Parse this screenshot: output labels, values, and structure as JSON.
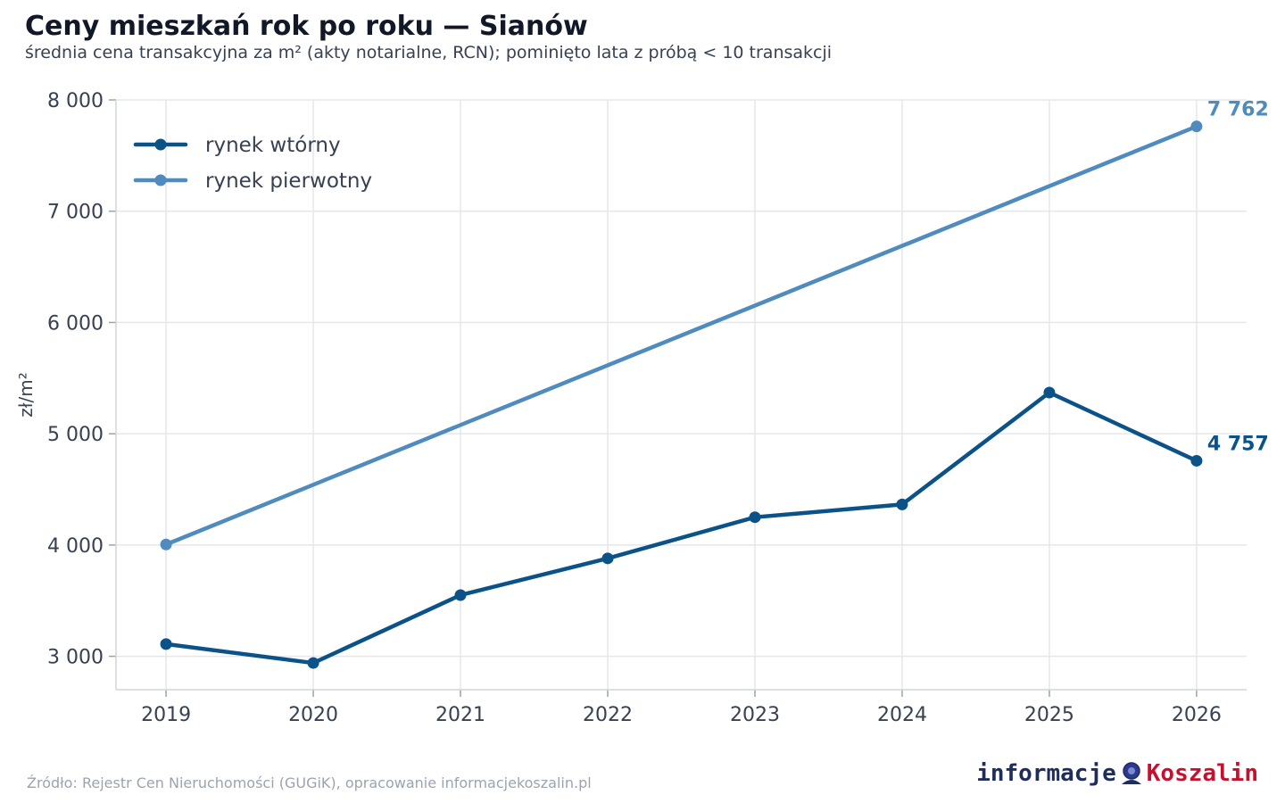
{
  "header": {
    "title": "Ceny mieszkań rok po roku — Sianów",
    "subtitle": "średnia cena transakcyjna za m² (akty notarialne, RCN); pominięto lata z próbą < 10 transakcji"
  },
  "footer": {
    "source": "Źródło: Rejestr Cen Nieruchomości (GUGiK), opracowanie informacjekoszalin.pl",
    "logo_part1": "informacje",
    "logo_part2": "Koszalin"
  },
  "chart_data": {
    "type": "line",
    "title": "Ceny mieszkań rok po roku — Sianów",
    "xlabel": "",
    "ylabel": "zł/m²",
    "x": [
      2019,
      2020,
      2021,
      2022,
      2023,
      2024,
      2025,
      2026
    ],
    "xlim": [
      2018.66,
      2026.34
    ],
    "ylim": [
      2700,
      8000
    ],
    "yticks": [
      3000,
      4000,
      5000,
      6000,
      7000,
      8000
    ],
    "ytick_labels": [
      "3 000",
      "4 000",
      "5 000",
      "6 000",
      "7 000",
      "8 000"
    ],
    "grid": true,
    "legend_position": "top-left",
    "series": [
      {
        "name": "rynek wtórny",
        "color": "#0b5288",
        "x": [
          2019,
          2020,
          2021,
          2022,
          2023,
          2024,
          2025,
          2026
        ],
        "values": [
          3110,
          2940,
          3550,
          3880,
          4250,
          4365,
          5370,
          4757
        ],
        "end_label": "4 757"
      },
      {
        "name": "rynek pierwotny",
        "color": "#4f8bbd",
        "x": [
          2019,
          2026
        ],
        "values": [
          4005,
          7762
        ],
        "end_label": "7 762"
      }
    ]
  }
}
